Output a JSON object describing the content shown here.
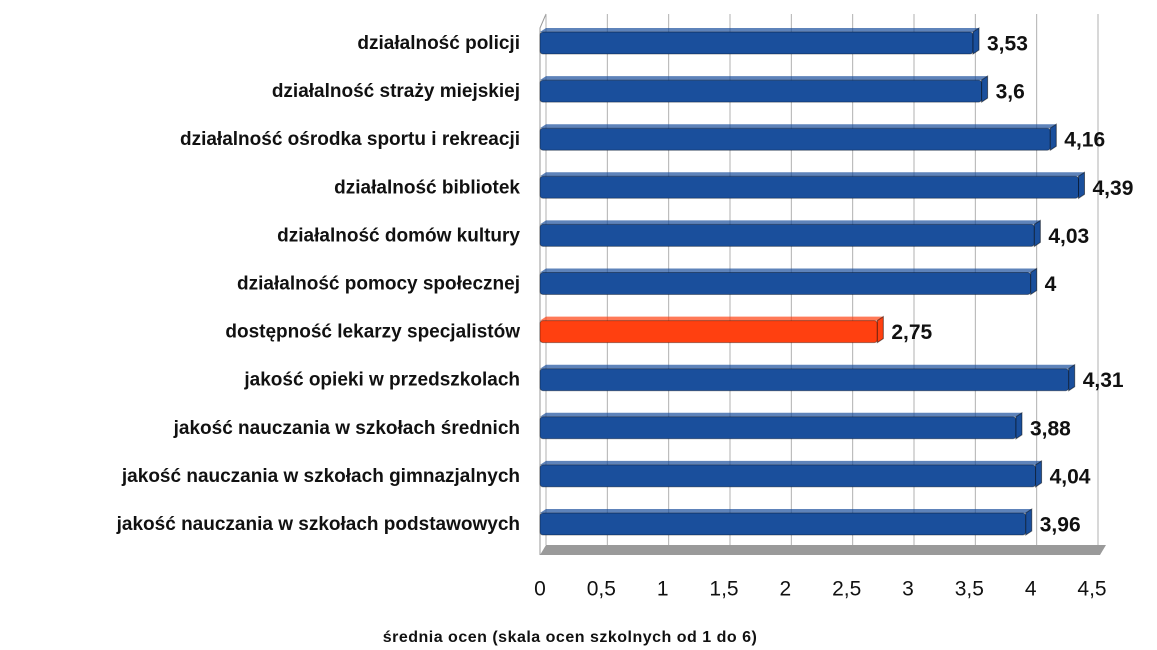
{
  "chart_data": {
    "type": "barh",
    "xlabel": "średnia ocen (skala ocen szkolnych od 1 do 6)",
    "categories": [
      "działalność policji",
      "działalność straży miejskiej",
      "działalność ośrodka sportu i rekreacji",
      "działalność bibliotek",
      "działalność domów kultury",
      "działalność pomocy społecznej",
      "dostępność lekarzy specjalistów",
      "jakość opieki w przedszkolach",
      "jakość nauczania w szkołach średnich",
      "jakość nauczania w szkołach gimnazjalnych",
      "jakość nauczania w szkołach podstawowych"
    ],
    "values": [
      3.53,
      3.6,
      4.16,
      4.39,
      4.03,
      4,
      2.75,
      4.31,
      3.88,
      4.04,
      3.96
    ],
    "value_labels": [
      "3,53",
      "3,6",
      "4,16",
      "4,39",
      "4,03",
      "4",
      "2,75",
      "4,31",
      "3,88",
      "4,04",
      "3,96"
    ],
    "colors": [
      "#1a4f9c",
      "#1a4f9c",
      "#1a4f9c",
      "#1a4f9c",
      "#1a4f9c",
      "#1a4f9c",
      "#ff4010",
      "#1a4f9c",
      "#1a4f9c",
      "#1a4f9c",
      "#1a4f9c"
    ],
    "xlim": [
      0,
      4.5
    ],
    "xticks": [
      0,
      {
        "value": 0.5,
        "label": "0,5"
      },
      1,
      {
        "value": 1.5,
        "label": "1,5"
      },
      2,
      {
        "value": 2.5,
        "label": "2,5"
      },
      3,
      {
        "value": 3.5,
        "label": "3,5"
      },
      4,
      {
        "value": 4.5,
        "label": "4,5"
      }
    ],
    "grid": true
  }
}
